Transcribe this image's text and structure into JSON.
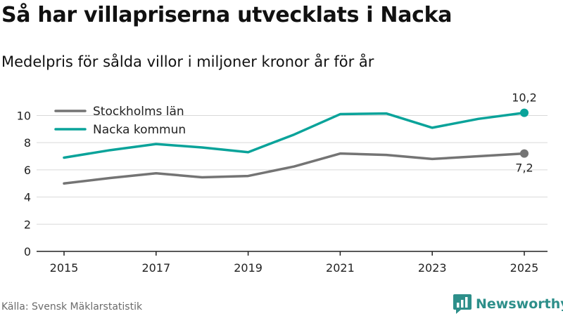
{
  "header": {
    "title": "Så har villapriserna utvecklats i Nacka",
    "subtitle": "Medelpris för sålda villor i miljoner kronor år för år"
  },
  "footer": {
    "source": "Källa: Svensk Mäklarstatistik",
    "brand": "Newsworthy",
    "brand_icon": "newsworthy-logo-icon"
  },
  "colors": {
    "stockholm": "#747474",
    "nacka": "#0aa39a",
    "grid": "#d9d9d9",
    "axis": "#222222",
    "brand": "#2d8f8a"
  },
  "chart_data": {
    "type": "line",
    "x": [
      2015,
      2016,
      2017,
      2018,
      2019,
      2020,
      2021,
      2022,
      2023,
      2024,
      2025
    ],
    "xticks": [
      2015,
      2017,
      2019,
      2021,
      2023,
      2025
    ],
    "yticks": [
      0,
      2,
      4,
      6,
      8,
      10
    ],
    "ylim": [
      0,
      10.8
    ],
    "grid": true,
    "legend_position": "top-left",
    "series": [
      {
        "name": "Stockholms län",
        "color": "#747474",
        "values": [
          5.0,
          5.4,
          5.75,
          5.45,
          5.55,
          6.25,
          7.2,
          7.1,
          6.8,
          7.0,
          7.2
        ],
        "end_label": "7,2"
      },
      {
        "name": "Nacka kommun",
        "color": "#0aa39a",
        "values": [
          6.9,
          7.45,
          7.9,
          7.65,
          7.3,
          8.6,
          10.1,
          10.15,
          9.1,
          9.75,
          10.2
        ],
        "end_label": "10,2"
      }
    ]
  }
}
